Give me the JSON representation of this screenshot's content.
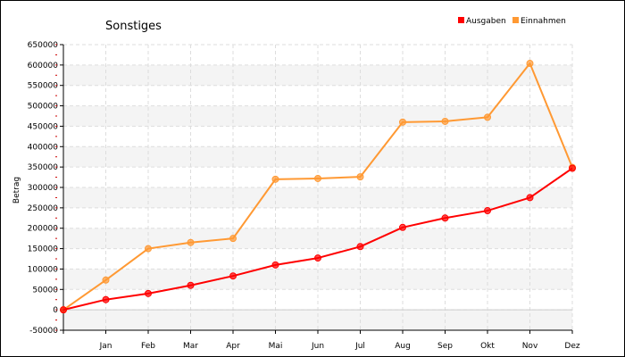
{
  "chart_data": {
    "type": "line",
    "title": "Sonstiges",
    "xlabel": "",
    "ylabel": "Betrag",
    "categories": [
      "",
      "Jan",
      "Feb",
      "Mar",
      "Apr",
      "Mai",
      "Jun",
      "Jul",
      "Aug",
      "Sep",
      "Okt",
      "Nov",
      "Dez"
    ],
    "ylim": [
      -50000,
      650000
    ],
    "yticks": [
      "-50000",
      "0",
      "50000",
      "100000",
      "150000",
      "200000",
      "250000",
      "300000",
      "350000",
      "400000",
      "450000",
      "500000",
      "550000",
      "600000",
      "650000"
    ],
    "grid": true,
    "legend_position": "top-right",
    "series": [
      {
        "name": "Ausgaben",
        "color": "#ff0000",
        "values": [
          0,
          25000,
          40000,
          60000,
          83000,
          110000,
          127000,
          155000,
          202000,
          225000,
          243000,
          275000,
          347000
        ]
      },
      {
        "name": "Einnahmen",
        "color": "#ff9933",
        "values": [
          0,
          73000,
          150000,
          165000,
          175000,
          320000,
          322000,
          326000,
          460000,
          462000,
          472000,
          604000,
          349000
        ]
      }
    ]
  }
}
